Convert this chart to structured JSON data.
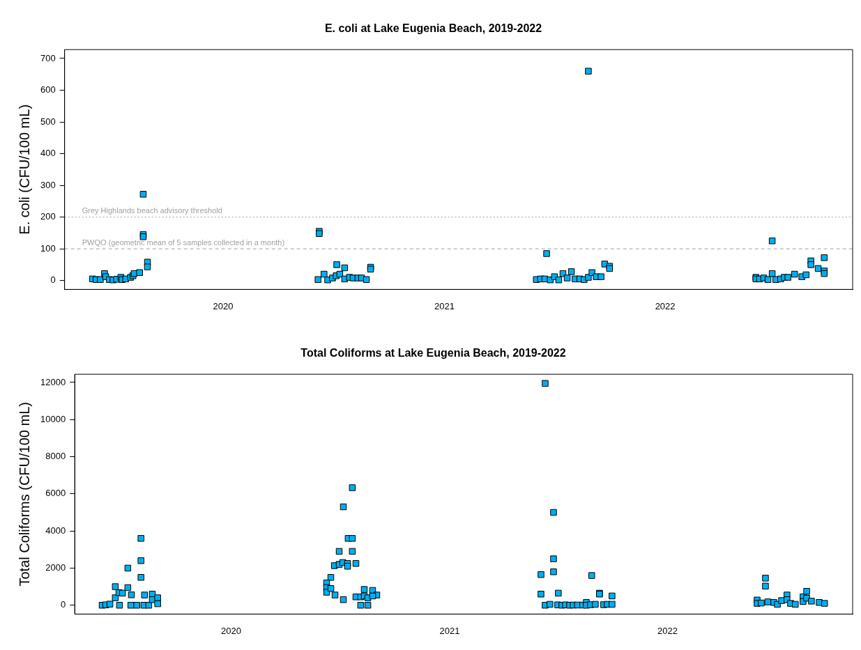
{
  "chart_data": [
    {
      "type": "scatter",
      "title": "E. coli at Lake Eugenia Beach, 2019-2022",
      "ylabel": "E. coli (CFU/100 mL)",
      "marker": "square",
      "grid": false,
      "legend": false,
      "color": "#00aeef",
      "x": [
        "2019-05-30",
        "2019-06-05",
        "2019-06-12",
        "2019-06-19",
        "2019-06-21",
        "2019-06-27",
        "2019-07-03",
        "2019-07-09",
        "2019-07-16",
        "2019-07-18",
        "2019-07-24",
        "2019-08-01",
        "2019-08-05",
        "2019-08-07",
        "2019-08-22",
        "2019-08-22",
        "2019-08-22",
        "2019-08-16",
        "2019-08-29",
        "2019-08-29",
        "2020-06-06",
        "2020-06-08",
        "2020-06-08",
        "2020-06-16",
        "2020-06-22",
        "2020-06-30",
        "2020-07-06",
        "2020-07-07",
        "2020-07-12",
        "2020-07-20",
        "2020-07-20",
        "2020-07-28",
        "2020-08-03",
        "2020-08-11",
        "2020-08-17",
        "2020-08-25",
        "2020-09-01",
        "2020-09-01",
        "2021-06-02",
        "2021-06-09",
        "2021-06-16",
        "2021-06-19",
        "2021-06-25",
        "2021-07-02",
        "2021-07-09",
        "2021-07-16",
        "2021-07-23",
        "2021-07-30",
        "2021-08-05",
        "2021-08-13",
        "2021-08-20",
        "2021-08-27",
        "2021-08-27",
        "2021-09-02",
        "2021-09-09",
        "2021-09-17",
        "2021-09-23",
        "2021-10-01",
        "2021-10-01",
        "2022-05-31",
        "2022-05-31",
        "2022-06-06",
        "2022-06-13",
        "2022-06-20",
        "2022-06-27",
        "2022-06-27",
        "2022-07-03",
        "2022-07-11",
        "2022-07-17",
        "2022-07-23",
        "2022-08-03",
        "2022-08-15",
        "2022-08-22",
        "2022-08-30",
        "2022-08-30",
        "2022-09-11",
        "2022-09-21",
        "2022-09-21",
        "2022-09-21"
      ],
      "values": [
        5,
        3,
        3,
        22,
        12,
        3,
        2,
        4,
        10,
        3,
        5,
        10,
        15,
        22,
        145,
        138,
        272,
        25,
        58,
        43,
        3,
        155,
        148,
        20,
        2,
        8,
        15,
        50,
        20,
        40,
        5,
        10,
        8,
        8,
        8,
        3,
        42,
        36,
        3,
        5,
        5,
        85,
        2,
        12,
        2,
        22,
        8,
        28,
        5,
        5,
        3,
        660,
        10,
        25,
        12,
        12,
        52,
        45,
        38,
        10,
        5,
        5,
        8,
        3,
        22,
        125,
        3,
        5,
        10,
        10,
        20,
        12,
        18,
        62,
        50,
        38,
        72,
        30,
        22
      ],
      "xlim": [
        "2019-04-14",
        "2022-11-07"
      ],
      "xticks": [
        "2020",
        "2021",
        "2022"
      ],
      "ylim": [
        -28,
        728
      ],
      "yticks": [
        0,
        100,
        200,
        300,
        400,
        500,
        600,
        700
      ],
      "ref_lines": [
        {
          "axis": "y",
          "value": 200,
          "label": "Grey Highlands beach advisory threshold",
          "color": "#a0a0a0",
          "line_style": "dotted"
        },
        {
          "axis": "y",
          "value": 100,
          "label": "PWQO (geometric mean of 5 samples collected in a month)",
          "color": "#a0a0a0",
          "line_style": "dashed"
        }
      ]
    },
    {
      "type": "scatter",
      "title": "Total Coliforms at Lake Eugenia Beach, 2019-2022",
      "ylabel": "Total Coliforms (CFU/100 mL)",
      "marker": "square",
      "grid": false,
      "legend": false,
      "color": "#00aeef",
      "x": [
        "2019-05-30",
        "2019-06-05",
        "2019-06-12",
        "2019-06-21",
        "2019-06-21",
        "2019-06-27",
        "2019-06-28",
        "2019-07-03",
        "2019-07-12",
        "2019-07-12",
        "2019-07-18",
        "2019-07-17",
        "2019-07-27",
        "2019-08-03",
        "2019-08-03",
        "2019-08-03",
        "2019-08-09",
        "2019-08-08",
        "2019-08-16",
        "2019-08-22",
        "2019-08-22",
        "2019-08-31",
        "2019-08-31",
        "2020-07-22",
        "2020-07-07",
        "2020-07-15",
        "2020-07-22",
        "2020-06-30",
        "2020-07-22",
        "2020-06-22",
        "2020-06-30",
        "2020-07-06",
        "2020-07-14",
        "2020-07-14",
        "2020-07-28",
        "2020-06-16",
        "2020-06-09",
        "2020-06-09",
        "2020-06-09",
        "2020-06-16",
        "2020-06-23",
        "2020-07-07",
        "2020-07-28",
        "2020-08-05",
        "2020-08-11",
        "2020-08-11",
        "2020-08-05",
        "2020-08-17",
        "2020-08-17",
        "2020-08-25",
        "2020-09-01",
        "2020-08-25",
        "2021-06-10",
        "2021-06-24",
        "2021-06-24",
        "2021-06-24",
        "2021-06-03",
        "2021-06-03",
        "2021-08-27",
        "2021-07-02",
        "2021-09-09",
        "2021-09-09",
        "2021-06-10",
        "2021-06-18",
        "2021-07-01",
        "2021-07-08",
        "2021-07-14",
        "2021-07-21",
        "2021-07-27",
        "2021-08-03",
        "2021-08-12",
        "2021-08-18",
        "2021-08-18",
        "2021-08-25",
        "2021-09-02",
        "2021-09-16",
        "2021-09-22",
        "2021-09-30",
        "2021-09-30",
        "2022-06-14",
        "2022-06-14",
        "2022-05-31",
        "2022-05-31",
        "2022-06-07",
        "2022-06-18",
        "2022-06-28",
        "2022-07-04",
        "2022-07-11",
        "2022-07-20",
        "2022-07-20",
        "2022-07-26",
        "2022-08-03",
        "2022-08-16",
        "2022-08-16",
        "2022-08-22",
        "2022-08-22",
        "2022-08-30",
        "2022-09-12",
        "2022-09-21"
      ],
      "values": [
        0,
        20,
        60,
        400,
        1000,
        680,
        0,
        650,
        950,
        2000,
        560,
        0,
        0,
        3600,
        2400,
        1500,
        550,
        0,
        0,
        600,
        300,
        400,
        80,
        6330,
        5300,
        3600,
        3600,
        2900,
        2900,
        2130,
        2200,
        2300,
        2250,
        2100,
        2250,
        1500,
        1200,
        950,
        700,
        900,
        550,
        300,
        450,
        450,
        850,
        500,
        0,
        400,
        0,
        800,
        550,
        500,
        11950,
        5000,
        2500,
        1800,
        1650,
        600,
        1600,
        650,
        650,
        600,
        0,
        50,
        20,
        0,
        20,
        0,
        10,
        10,
        10,
        150,
        0,
        30,
        50,
        30,
        50,
        500,
        50,
        1460,
        1030,
        280,
        100,
        120,
        180,
        150,
        50,
        250,
        550,
        300,
        100,
        50,
        450,
        200,
        750,
        380,
        220,
        150,
        100
      ],
      "xlim": [
        "2019-04-14",
        "2022-11-07"
      ],
      "xticks": [
        "2020",
        "2021",
        "2022"
      ],
      "ylim": [
        -475,
        12440
      ],
      "yticks": [
        0,
        2000,
        4000,
        6000,
        8000,
        10000,
        12000
      ]
    }
  ]
}
